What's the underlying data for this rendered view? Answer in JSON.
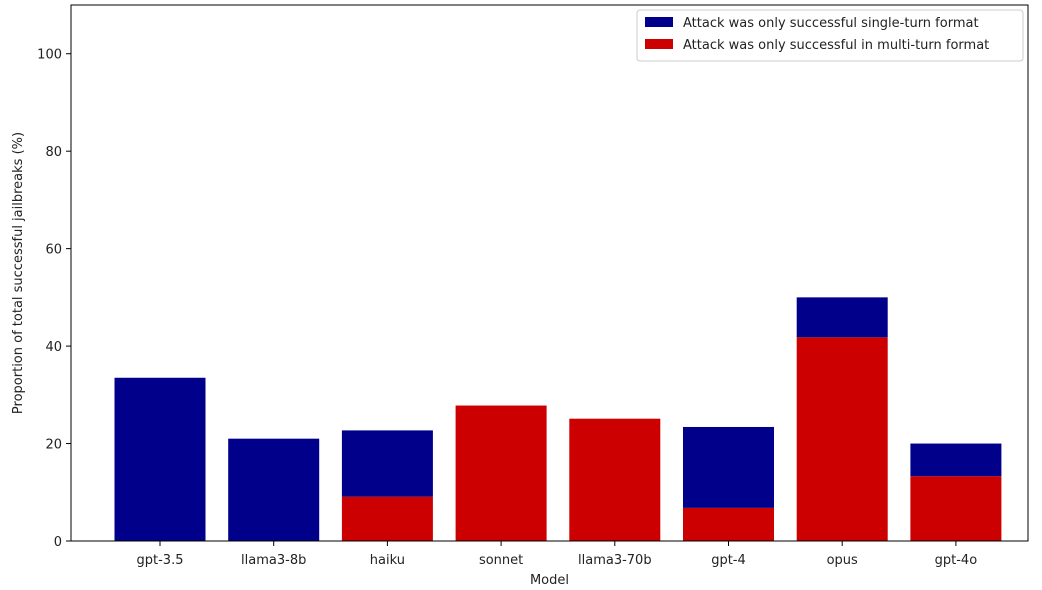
{
  "chart_data": {
    "type": "bar",
    "stacked": true,
    "title": "",
    "xlabel": "Model",
    "ylabel": "Proportion of total successful jailbreaks (%)",
    "ylim": [
      0,
      110
    ],
    "yticks": [
      0,
      20,
      40,
      60,
      80,
      100
    ],
    "categories": [
      "gpt-3.5",
      "llama3-8b",
      "haiku",
      "sonnet",
      "llama3-70b",
      "gpt-4",
      "opus",
      "gpt-4o"
    ],
    "series": [
      {
        "name": "Attack was only successful in multi-turn format",
        "color": "#cc0000",
        "values": [
          0,
          0,
          9.1,
          27.8,
          25.1,
          6.8,
          41.8,
          13.3
        ],
        "stack_order": 0
      },
      {
        "name": "Attack was only successful single-turn format",
        "color": "#00008b",
        "values": [
          33.5,
          21.0,
          13.6,
          0,
          0,
          16.6,
          8.2,
          6.7
        ],
        "stack_order": 1
      }
    ],
    "legend_order": [
      1,
      0
    ],
    "legend_position": "top-right",
    "grid": false
  }
}
